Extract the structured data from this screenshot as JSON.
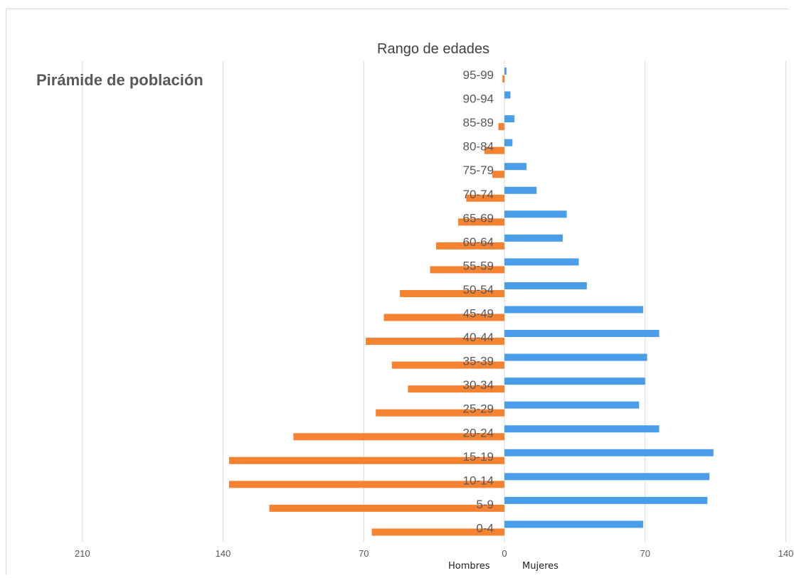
{
  "heading": "Pirámide de población",
  "chart_data": {
    "type": "bar",
    "orientation": "horizontal",
    "title": "Rango de edades",
    "categories": [
      "0-4",
      "5-9",
      "10-14",
      "15-19",
      "20-24",
      "25-29",
      "30-34",
      "35-39",
      "40-44",
      "45-49",
      "50-54",
      "55-59",
      "60-64",
      "65-69",
      "70-74",
      "75-79",
      "80-84",
      "85-89",
      "90-94",
      "95-99"
    ],
    "series": [
      {
        "name": "Hombres",
        "color": "#f58231",
        "values": [
          66,
          117,
          137,
          137,
          105,
          64,
          48,
          56,
          69,
          60,
          52,
          37,
          34,
          23,
          19,
          6,
          10,
          3,
          0,
          1
        ]
      },
      {
        "name": "Mujeres",
        "color": "#4a9de8",
        "values": [
          69,
          101,
          102,
          104,
          77,
          67,
          70,
          71,
          77,
          69,
          41,
          37,
          29,
          31,
          16,
          11,
          4,
          5,
          3,
          1
        ]
      }
    ],
    "x_tick_labels": [
      "210",
      "140",
      "70",
      "0",
      "70",
      "140"
    ],
    "xlim": [
      -210,
      140
    ],
    "grid": true,
    "legend_position": "bottom"
  }
}
